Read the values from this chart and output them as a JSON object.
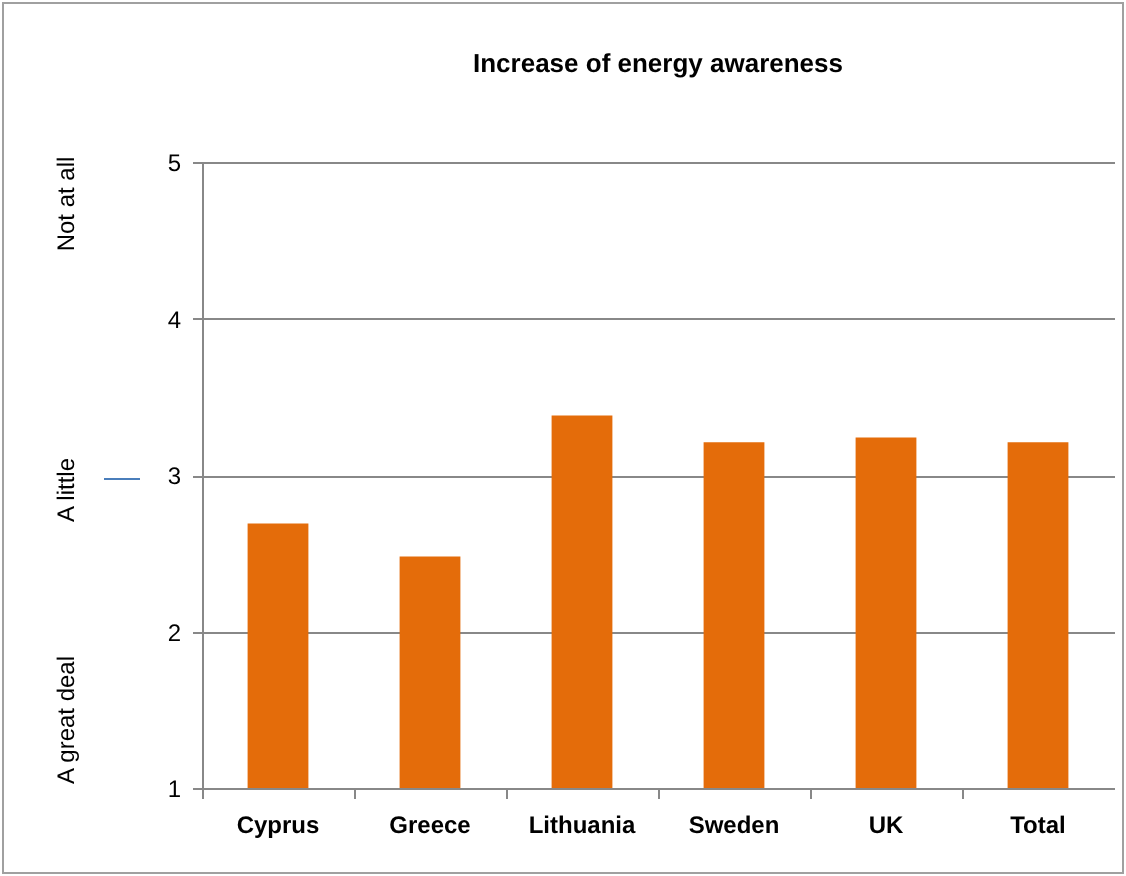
{
  "chart_data": {
    "type": "bar",
    "title": "Increase of energy awareness",
    "categories": [
      "Cyprus",
      "Greece",
      "Lithuania",
      "Sweden",
      "UK",
      "Total"
    ],
    "values": [
      2.69,
      2.48,
      3.38,
      3.21,
      3.24,
      3.21
    ],
    "color": "#e46c0a",
    "ylim": [
      1,
      5
    ],
    "yticks": [
      1,
      2,
      3,
      4,
      5
    ],
    "grid": "y",
    "annotations": [
      "Not at all",
      "A little",
      "A great deal"
    ]
  }
}
